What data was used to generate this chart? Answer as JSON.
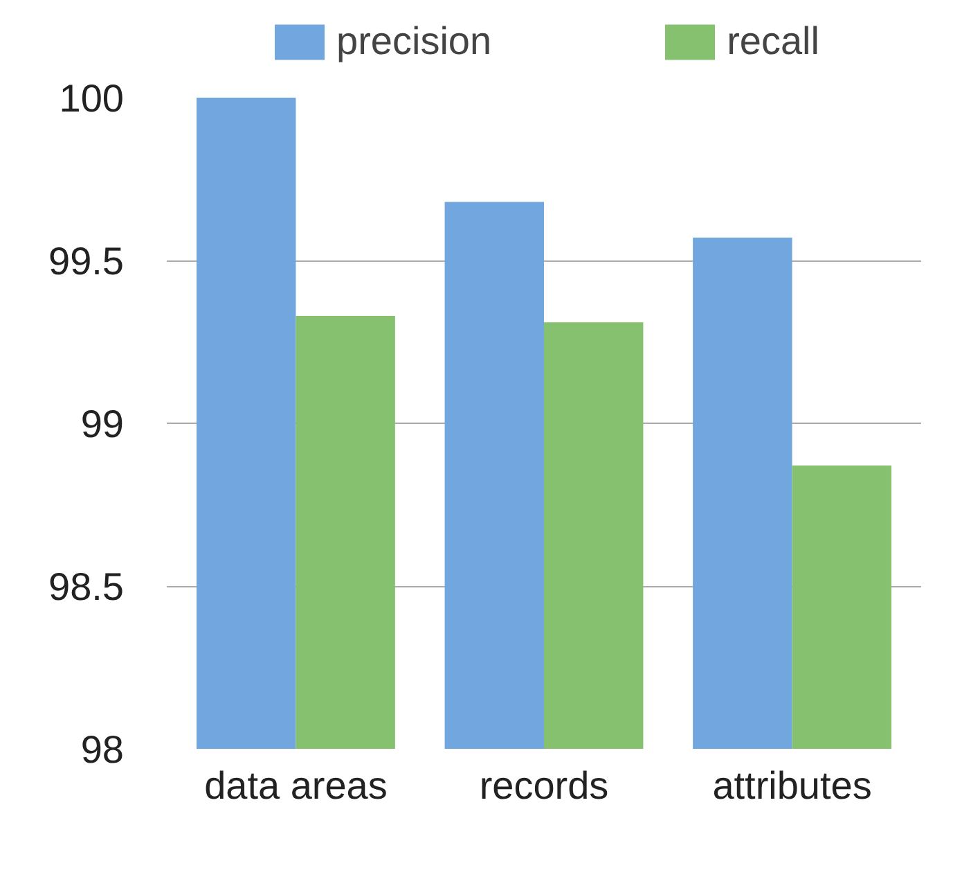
{
  "chart_data": {
    "type": "bar",
    "categories": [
      "data areas",
      "records",
      "attributes"
    ],
    "series": [
      {
        "name": "precision",
        "color": "#72a6de",
        "values": [
          100,
          99.68,
          99.57
        ]
      },
      {
        "name": "recall",
        "color": "#85c16e",
        "values": [
          99.33,
          99.31,
          98.87
        ]
      }
    ],
    "ylim": [
      98,
      100
    ],
    "yticks": [
      98,
      98.5,
      99,
      99.5,
      100
    ],
    "grid": "y",
    "legend": "top"
  }
}
